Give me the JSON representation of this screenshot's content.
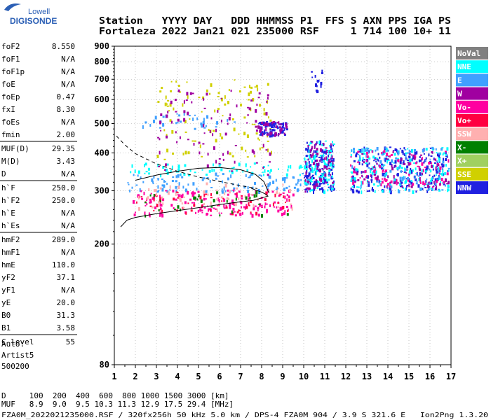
{
  "logo": {
    "line1": "Lowell",
    "line2": "DIGISONDE"
  },
  "header": {
    "row1": "Station   YYYY DAY   DDD HHMMSS P1  FFS S AXN PPS IGA PS",
    "row2": "Fortaleza 2022 Jan21 021 235000 RSF     1 714 100 10+ 11"
  },
  "params": [
    {
      "label": "foF2",
      "value": "8.550"
    },
    {
      "label": "foF1",
      "value": "N/A"
    },
    {
      "label": "foF1p",
      "value": "N/A"
    },
    {
      "label": "foE",
      "value": "N/A"
    },
    {
      "label": "foEp",
      "value": "0.47"
    },
    {
      "label": "fxI",
      "value": "8.30"
    },
    {
      "label": "foEs",
      "value": "N/A"
    },
    {
      "label": "fmin",
      "value": "2.00"
    },
    {
      "label": "MUF(D)",
      "value": "29.35"
    },
    {
      "label": "M(D)",
      "value": "3.43"
    },
    {
      "label": "D",
      "value": "N/A"
    },
    {
      "label": "h`F",
      "value": "250.0"
    },
    {
      "label": "h`F2",
      "value": "250.0"
    },
    {
      "label": "h`E",
      "value": "N/A"
    },
    {
      "label": "h`Es",
      "value": "N/A"
    },
    {
      "label": "hmF2",
      "value": "289.0"
    },
    {
      "label": "hmF1",
      "value": "N/A"
    },
    {
      "label": "hmE",
      "value": "110.0"
    },
    {
      "label": "yF2",
      "value": "37.1"
    },
    {
      "label": "yF1",
      "value": "N/A"
    },
    {
      "label": "yE",
      "value": "20.0"
    },
    {
      "label": "B0",
      "value": "31.3"
    },
    {
      "label": "B1",
      "value": "3.58"
    },
    {
      "label": "C-level",
      "value": "55"
    }
  ],
  "auto": {
    "line1": "Auto:",
    "line2": "Artist5",
    "line3": "500200"
  },
  "legend": [
    {
      "label": "NoVal",
      "bg": "#808080",
      "fg": "#ffffff"
    },
    {
      "label": "NNE",
      "bg": "#00ffff",
      "fg": "#ffffff"
    },
    {
      "label": "E",
      "bg": "#40a0ff",
      "fg": "#ffffff"
    },
    {
      "label": "W",
      "bg": "#a000a0",
      "fg": "#ffffff"
    },
    {
      "label": "Vo-",
      "bg": "#ff00a0",
      "fg": "#ffffff"
    },
    {
      "label": "Vo+",
      "bg": "#ff0040",
      "fg": "#ffffff"
    },
    {
      "label": "SSW",
      "bg": "#ffb0b0",
      "fg": "#ffffff"
    },
    {
      "label": "X-",
      "bg": "#008000",
      "fg": "#ffffff"
    },
    {
      "label": "X+",
      "bg": "#a0d060",
      "fg": "#ffffff"
    },
    {
      "label": "SSE",
      "bg": "#d0d000",
      "fg": "#ffffff"
    },
    {
      "label": "NNW",
      "bg": "#2020e0",
      "fg": "#ffffff"
    }
  ],
  "footer": {
    "row1": "D     100  200  400  600  800 1000 1500 3000 [km]",
    "row2": "MUF   8.9  9.0  9.5 10.3 11.3 12.9 17.5 29.4 [MHz]",
    "row3": "FZA0M_2022021235000.RSF / 320fx256h 50 kHz 5.0 km / DPS-4 FZA0M 904 / 3.9 S 321.6 E   Ion2Png 1.3.20"
  },
  "chart_data": {
    "type": "scatter",
    "title": "",
    "xlabel": "",
    "ylabel": "",
    "xlim": [
      1,
      17
    ],
    "ylim": [
      80,
      900
    ],
    "y_scale": "log",
    "x_ticks": [
      1,
      2,
      3,
      4,
      5,
      6,
      7,
      8,
      9,
      10,
      11,
      12,
      13,
      14,
      15,
      16,
      17
    ],
    "y_ticks": [
      80,
      200,
      300,
      400,
      500,
      600,
      700,
      800,
      900
    ],
    "grid": true,
    "grid_style": "dotted",
    "legend_position": "right",
    "traces": [
      {
        "name": "",
        "style": "dashed",
        "points": [
          [
            1.1,
            455
          ],
          [
            1.5,
            425
          ],
          [
            2,
            398
          ],
          [
            3,
            368
          ],
          [
            4,
            348
          ],
          [
            5,
            333
          ],
          [
            6,
            322
          ],
          [
            7,
            312
          ],
          [
            7.8,
            305
          ]
        ]
      },
      {
        "name": "",
        "style": "solid",
        "points": [
          [
            1.3,
            228
          ],
          [
            1.6,
            240
          ],
          [
            2,
            245
          ],
          [
            3,
            252
          ],
          [
            4,
            258
          ],
          [
            5,
            264
          ],
          [
            6,
            270
          ],
          [
            7,
            276
          ],
          [
            7.6,
            279
          ],
          [
            8,
            284
          ],
          [
            8.3,
            288
          ],
          [
            8.2,
            292
          ],
          [
            8,
            297
          ],
          [
            7.7,
            302
          ],
          [
            7.5,
            306
          ]
        ]
      },
      {
        "name": "",
        "style": "solid",
        "points": [
          [
            2,
            325
          ],
          [
            3,
            338
          ],
          [
            4,
            348
          ],
          [
            5,
            356
          ],
          [
            6,
            358
          ],
          [
            7,
            352
          ],
          [
            7.7,
            340
          ],
          [
            8.1,
            322
          ],
          [
            8.35,
            295
          ]
        ]
      }
    ],
    "bands": [
      {
        "name": "E",
        "x0": 1.9,
        "x1": 6.8,
        "y0": 478,
        "y1": 545,
        "density": 34
      },
      {
        "name": "NNE",
        "x0": 1.6,
        "x1": 10,
        "y0": 340,
        "y1": 372,
        "density": 70
      },
      {
        "name": "E",
        "x0": 1.6,
        "x1": 10,
        "y0": 300,
        "y1": 345,
        "density": 110
      },
      {
        "name": "Vo-",
        "x0": 1.8,
        "x1": 9.5,
        "y0": 250,
        "y1": 305,
        "density": 170
      },
      {
        "name": "Vo+",
        "x0": 1.8,
        "x1": 9.5,
        "y0": 255,
        "y1": 300,
        "density": 60
      },
      {
        "name": "SSW",
        "x0": 2,
        "x1": 9.5,
        "y0": 260,
        "y1": 320,
        "density": 60
      },
      {
        "name": "X-",
        "x0": 2,
        "x1": 9.5,
        "y0": 250,
        "y1": 300,
        "density": 30
      },
      {
        "name": "SSE",
        "x0": 3,
        "x1": 8.5,
        "y0": 380,
        "y1": 700,
        "density": 110
      },
      {
        "name": "W",
        "x0": 3,
        "x1": 8.5,
        "y0": 340,
        "y1": 650,
        "density": 90
      },
      {
        "name": "NNW",
        "x0": 7.8,
        "x1": 9.2,
        "y0": 460,
        "y1": 510,
        "density": 80
      },
      {
        "name": "W",
        "x0": 7.8,
        "x1": 9.2,
        "y0": 460,
        "y1": 510,
        "density": 40
      },
      {
        "name": "NNW",
        "x0": 10,
        "x1": 11.4,
        "y0": 300,
        "y1": 440,
        "density": 140
      },
      {
        "name": "NNE",
        "x0": 10,
        "x1": 11.4,
        "y0": 300,
        "y1": 440,
        "density": 90
      },
      {
        "name": "W",
        "x0": 10,
        "x1": 11.4,
        "y0": 300,
        "y1": 440,
        "density": 60
      },
      {
        "name": "NNW",
        "x0": 12.2,
        "x1": 16.9,
        "y0": 300,
        "y1": 420,
        "density": 220
      },
      {
        "name": "NNE",
        "x0": 12.2,
        "x1": 16.9,
        "y0": 300,
        "y1": 420,
        "density": 140
      },
      {
        "name": "E",
        "x0": 12.2,
        "x1": 16.9,
        "y0": 300,
        "y1": 420,
        "density": 100
      },
      {
        "name": "Vo-",
        "x0": 12.2,
        "x1": 16.9,
        "y0": 310,
        "y1": 410,
        "density": 80
      },
      {
        "name": "W",
        "x0": 12.2,
        "x1": 16.9,
        "y0": 310,
        "y1": 410,
        "density": 60
      },
      {
        "name": "NNW",
        "x0": 10.3,
        "x1": 11,
        "y0": 640,
        "y1": 780,
        "density": 15
      }
    ]
  }
}
